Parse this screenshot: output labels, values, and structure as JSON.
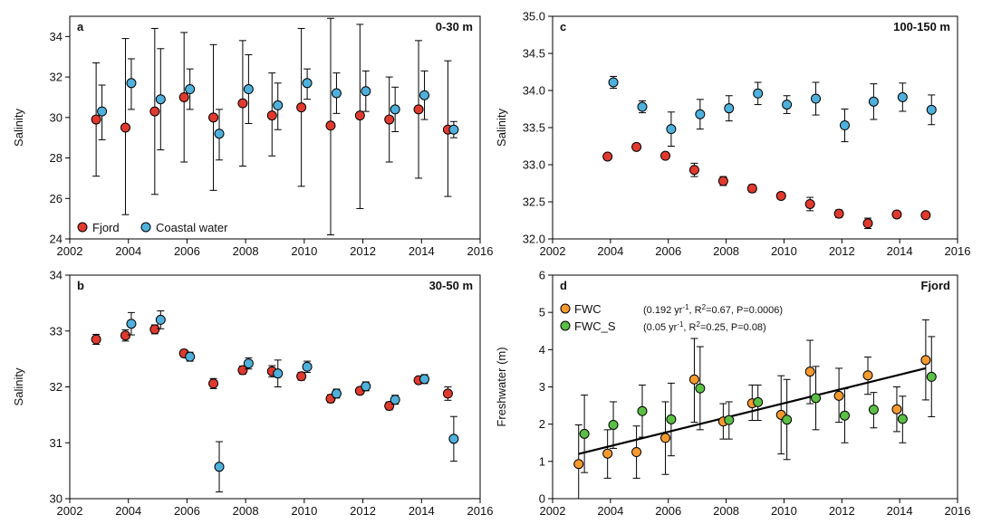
{
  "chart_data": [
    {
      "type": "scatter",
      "panel_letter": "a",
      "depth_label": "0-30 m",
      "xlabel": "",
      "ylabel": "Salinity",
      "xlim": [
        2002,
        2016
      ],
      "ylim": [
        24,
        35
      ],
      "xticks": [
        2002,
        2004,
        2006,
        2008,
        2010,
        2012,
        2014,
        2016
      ],
      "yticks": [
        24,
        26,
        28,
        30,
        32,
        34
      ],
      "ytick_labels": [
        "24",
        "26",
        "28",
        "30",
        "32",
        "34"
      ],
      "legend_position": "bottom-left",
      "series": [
        {
          "name": "Fjord",
          "color": "#e03a2e",
          "x": [
            2002.9,
            2003.9,
            2004.9,
            2005.9,
            2006.9,
            2007.9,
            2008.9,
            2009.9,
            2010.9,
            2011.9,
            2012.9,
            2013.9,
            2014.9
          ],
          "y": [
            29.9,
            29.5,
            30.3,
            31.0,
            30.0,
            30.7,
            30.1,
            30.5,
            29.6,
            30.1,
            29.9,
            30.4,
            29.4
          ],
          "err_low": [
            27.1,
            25.2,
            26.2,
            27.8,
            26.4,
            27.6,
            28.1,
            26.6,
            24.2,
            25.5,
            27.8,
            27.0,
            26.1
          ],
          "err_high": [
            32.7,
            33.9,
            34.4,
            34.2,
            33.6,
            33.8,
            32.2,
            34.4,
            34.9,
            34.6,
            32.0,
            33.8,
            32.8
          ]
        },
        {
          "name": "Coastal water",
          "color": "#4fb0dc",
          "x": [
            2003.1,
            2004.1,
            2005.1,
            2006.1,
            2007.1,
            2008.1,
            2009.1,
            2010.1,
            2011.1,
            2012.1,
            2013.1,
            2014.1,
            2015.1
          ],
          "y": [
            30.3,
            31.7,
            30.9,
            31.4,
            29.2,
            31.4,
            30.6,
            31.7,
            31.2,
            31.3,
            30.4,
            31.1,
            29.4
          ],
          "err_low": [
            28.9,
            30.4,
            28.4,
            30.4,
            27.9,
            29.7,
            29.4,
            30.9,
            30.2,
            30.3,
            29.3,
            29.9,
            29.0
          ],
          "err_high": [
            31.6,
            32.9,
            33.4,
            32.4,
            30.4,
            33.1,
            31.7,
            32.4,
            32.2,
            32.3,
            31.5,
            32.3,
            29.8
          ]
        }
      ]
    },
    {
      "type": "scatter",
      "panel_letter": "b",
      "depth_label": "30-50 m",
      "xlabel": "",
      "ylabel": "Salinity",
      "xlim": [
        2002,
        2016
      ],
      "ylim": [
        30,
        34
      ],
      "xticks": [
        2002,
        2004,
        2006,
        2008,
        2010,
        2012,
        2014,
        2016
      ],
      "yticks": [
        30,
        31,
        32,
        33,
        34
      ],
      "ytick_labels": [
        "30",
        "31",
        "32",
        "33",
        "34"
      ],
      "series": [
        {
          "name": "Fjord",
          "color": "#e03a2e",
          "x": [
            2002.9,
            2003.9,
            2004.9,
            2005.9,
            2006.9,
            2007.9,
            2008.9,
            2009.9,
            2010.9,
            2011.9,
            2012.9,
            2013.9,
            2014.9
          ],
          "y": [
            32.85,
            32.92,
            33.03,
            32.6,
            32.06,
            32.3,
            32.28,
            32.19,
            31.79,
            31.93,
            31.66,
            32.12,
            31.88
          ],
          "err_low": [
            32.76,
            32.82,
            32.95,
            32.54,
            31.97,
            32.23,
            32.18,
            32.12,
            31.72,
            31.87,
            31.59,
            32.07,
            31.76
          ],
          "err_high": [
            32.94,
            33.02,
            33.11,
            32.66,
            32.15,
            32.37,
            32.38,
            32.26,
            31.86,
            31.99,
            31.73,
            32.17,
            32.0
          ]
        },
        {
          "name": "Coastal water",
          "color": "#4fb0dc",
          "x": [
            2003.1,
            2004.1,
            2005.1,
            2006.1,
            2007.1,
            2008.1,
            2009.1,
            2010.1,
            2011.1,
            2012.1,
            2013.1,
            2014.1,
            2015.1
          ],
          "y": [
            null,
            33.13,
            33.2,
            32.54,
            30.57,
            32.42,
            32.24,
            32.36,
            31.88,
            32.01,
            31.77,
            32.14,
            31.07
          ],
          "err_low": [
            null,
            32.93,
            33.04,
            32.46,
            30.12,
            32.32,
            32.0,
            32.26,
            31.8,
            31.93,
            31.69,
            32.06,
            30.67
          ],
          "err_high": [
            null,
            33.33,
            33.36,
            32.62,
            31.02,
            32.52,
            32.48,
            32.46,
            31.96,
            32.09,
            31.85,
            32.22,
            31.47
          ]
        }
      ]
    },
    {
      "type": "scatter",
      "panel_letter": "c",
      "depth_label": "100-150 m",
      "xlabel": "",
      "ylabel": "Salinity",
      "xlim": [
        2002,
        2016
      ],
      "ylim": [
        32.0,
        35.0
      ],
      "xticks": [
        2002,
        2004,
        2006,
        2008,
        2010,
        2012,
        2014,
        2016
      ],
      "yticks": [
        32.0,
        32.5,
        33.0,
        33.5,
        34.0,
        34.5,
        35.0
      ],
      "ytick_labels": [
        "32.0",
        "32.5",
        "33.0",
        "33.5",
        "34.0",
        "34.5",
        "35.0"
      ],
      "series": [
        {
          "name": "Fjord",
          "color": "#e03a2e",
          "x": [
            2003.9,
            2004.9,
            2005.9,
            2006.9,
            2007.9,
            2008.9,
            2009.9,
            2010.9,
            2011.9,
            2012.9,
            2013.9,
            2014.9
          ],
          "y": [
            33.11,
            33.24,
            33.12,
            32.93,
            32.78,
            32.68,
            32.58,
            32.47,
            32.34,
            32.21,
            32.33,
            32.32
          ],
          "err_low": [
            33.07,
            33.21,
            33.08,
            32.84,
            32.72,
            32.63,
            32.54,
            32.38,
            32.29,
            32.14,
            32.3,
            32.29
          ],
          "err_high": [
            33.15,
            33.27,
            33.16,
            33.02,
            32.84,
            32.73,
            32.62,
            32.56,
            32.39,
            32.28,
            32.36,
            32.35
          ]
        },
        {
          "name": "Coastal water",
          "color": "#4fb0dc",
          "x": [
            2004.1,
            2005.1,
            2006.1,
            2007.1,
            2008.1,
            2009.1,
            2010.1,
            2011.1,
            2012.1,
            2013.1,
            2014.1,
            2015.1
          ],
          "y": [
            34.11,
            33.78,
            33.48,
            33.68,
            33.76,
            33.96,
            33.81,
            33.89,
            33.53,
            33.85,
            33.91,
            33.74
          ],
          "err_low": [
            34.03,
            33.7,
            33.25,
            33.48,
            33.59,
            33.81,
            33.69,
            33.67,
            33.31,
            33.61,
            33.72,
            33.54
          ],
          "err_high": [
            34.19,
            33.86,
            33.71,
            33.88,
            33.93,
            34.11,
            33.93,
            34.11,
            33.75,
            34.09,
            34.1,
            33.94
          ]
        }
      ]
    },
    {
      "type": "scatter",
      "panel_letter": "d",
      "depth_label": "Fjord",
      "xlabel": "",
      "ylabel": "Freshwater (m)",
      "xlim": [
        2002,
        2016
      ],
      "ylim": [
        0,
        6
      ],
      "xticks": [
        2002,
        2004,
        2006,
        2008,
        2010,
        2012,
        2014,
        2016
      ],
      "yticks": [
        0,
        1,
        2,
        3,
        4,
        5,
        6
      ],
      "ytick_labels": [
        "0",
        "1",
        "2",
        "3",
        "4",
        "5",
        "6"
      ],
      "legend_position": "top-left",
      "trend_line": {
        "x": [
          2002.9,
          2014.9
        ],
        "y": [
          1.2,
          3.5
        ]
      },
      "series": [
        {
          "name": "FWC",
          "note": "(0.192 yr⁻¹, R²=0.67, P=0.0006)",
          "color": "#f59a2f",
          "x": [
            2002.9,
            2003.9,
            2004.9,
            2005.9,
            2006.9,
            2007.9,
            2008.9,
            2009.9,
            2010.9,
            2011.9,
            2012.9,
            2013.9,
            2014.9
          ],
          "y": [
            0.93,
            1.21,
            1.25,
            1.63,
            3.2,
            2.07,
            2.56,
            2.25,
            3.41,
            2.76,
            3.31,
            2.4,
            3.72
          ],
          "err_low": [
            0.0,
            0.55,
            0.55,
            0.65,
            2.05,
            1.6,
            2.1,
            1.2,
            2.55,
            2.05,
            2.8,
            1.8,
            2.65
          ],
          "err_high": [
            1.98,
            1.85,
            1.95,
            2.6,
            4.3,
            2.55,
            3.05,
            3.3,
            4.25,
            3.5,
            3.8,
            3.0,
            4.8
          ]
        },
        {
          "name": "FWC_S",
          "note": "(0.05 yr⁻¹, R²=0.25, P=0.08)",
          "color": "#5bbf45",
          "x": [
            2003.1,
            2004.1,
            2005.1,
            2006.1,
            2007.1,
            2008.1,
            2009.1,
            2010.1,
            2011.1,
            2012.1,
            2013.1,
            2014.1,
            2015.1
          ],
          "y": [
            1.74,
            1.98,
            2.35,
            2.13,
            2.96,
            2.11,
            2.59,
            2.12,
            2.7,
            2.23,
            2.39,
            2.14,
            3.27
          ],
          "err_low": [
            0.7,
            1.35,
            1.65,
            1.15,
            1.85,
            1.6,
            2.1,
            1.05,
            1.85,
            1.5,
            1.9,
            1.5,
            2.2
          ],
          "err_high": [
            2.78,
            2.6,
            3.05,
            3.1,
            4.08,
            2.6,
            3.05,
            3.2,
            3.55,
            2.95,
            2.85,
            2.75,
            4.35
          ]
        }
      ]
    }
  ]
}
